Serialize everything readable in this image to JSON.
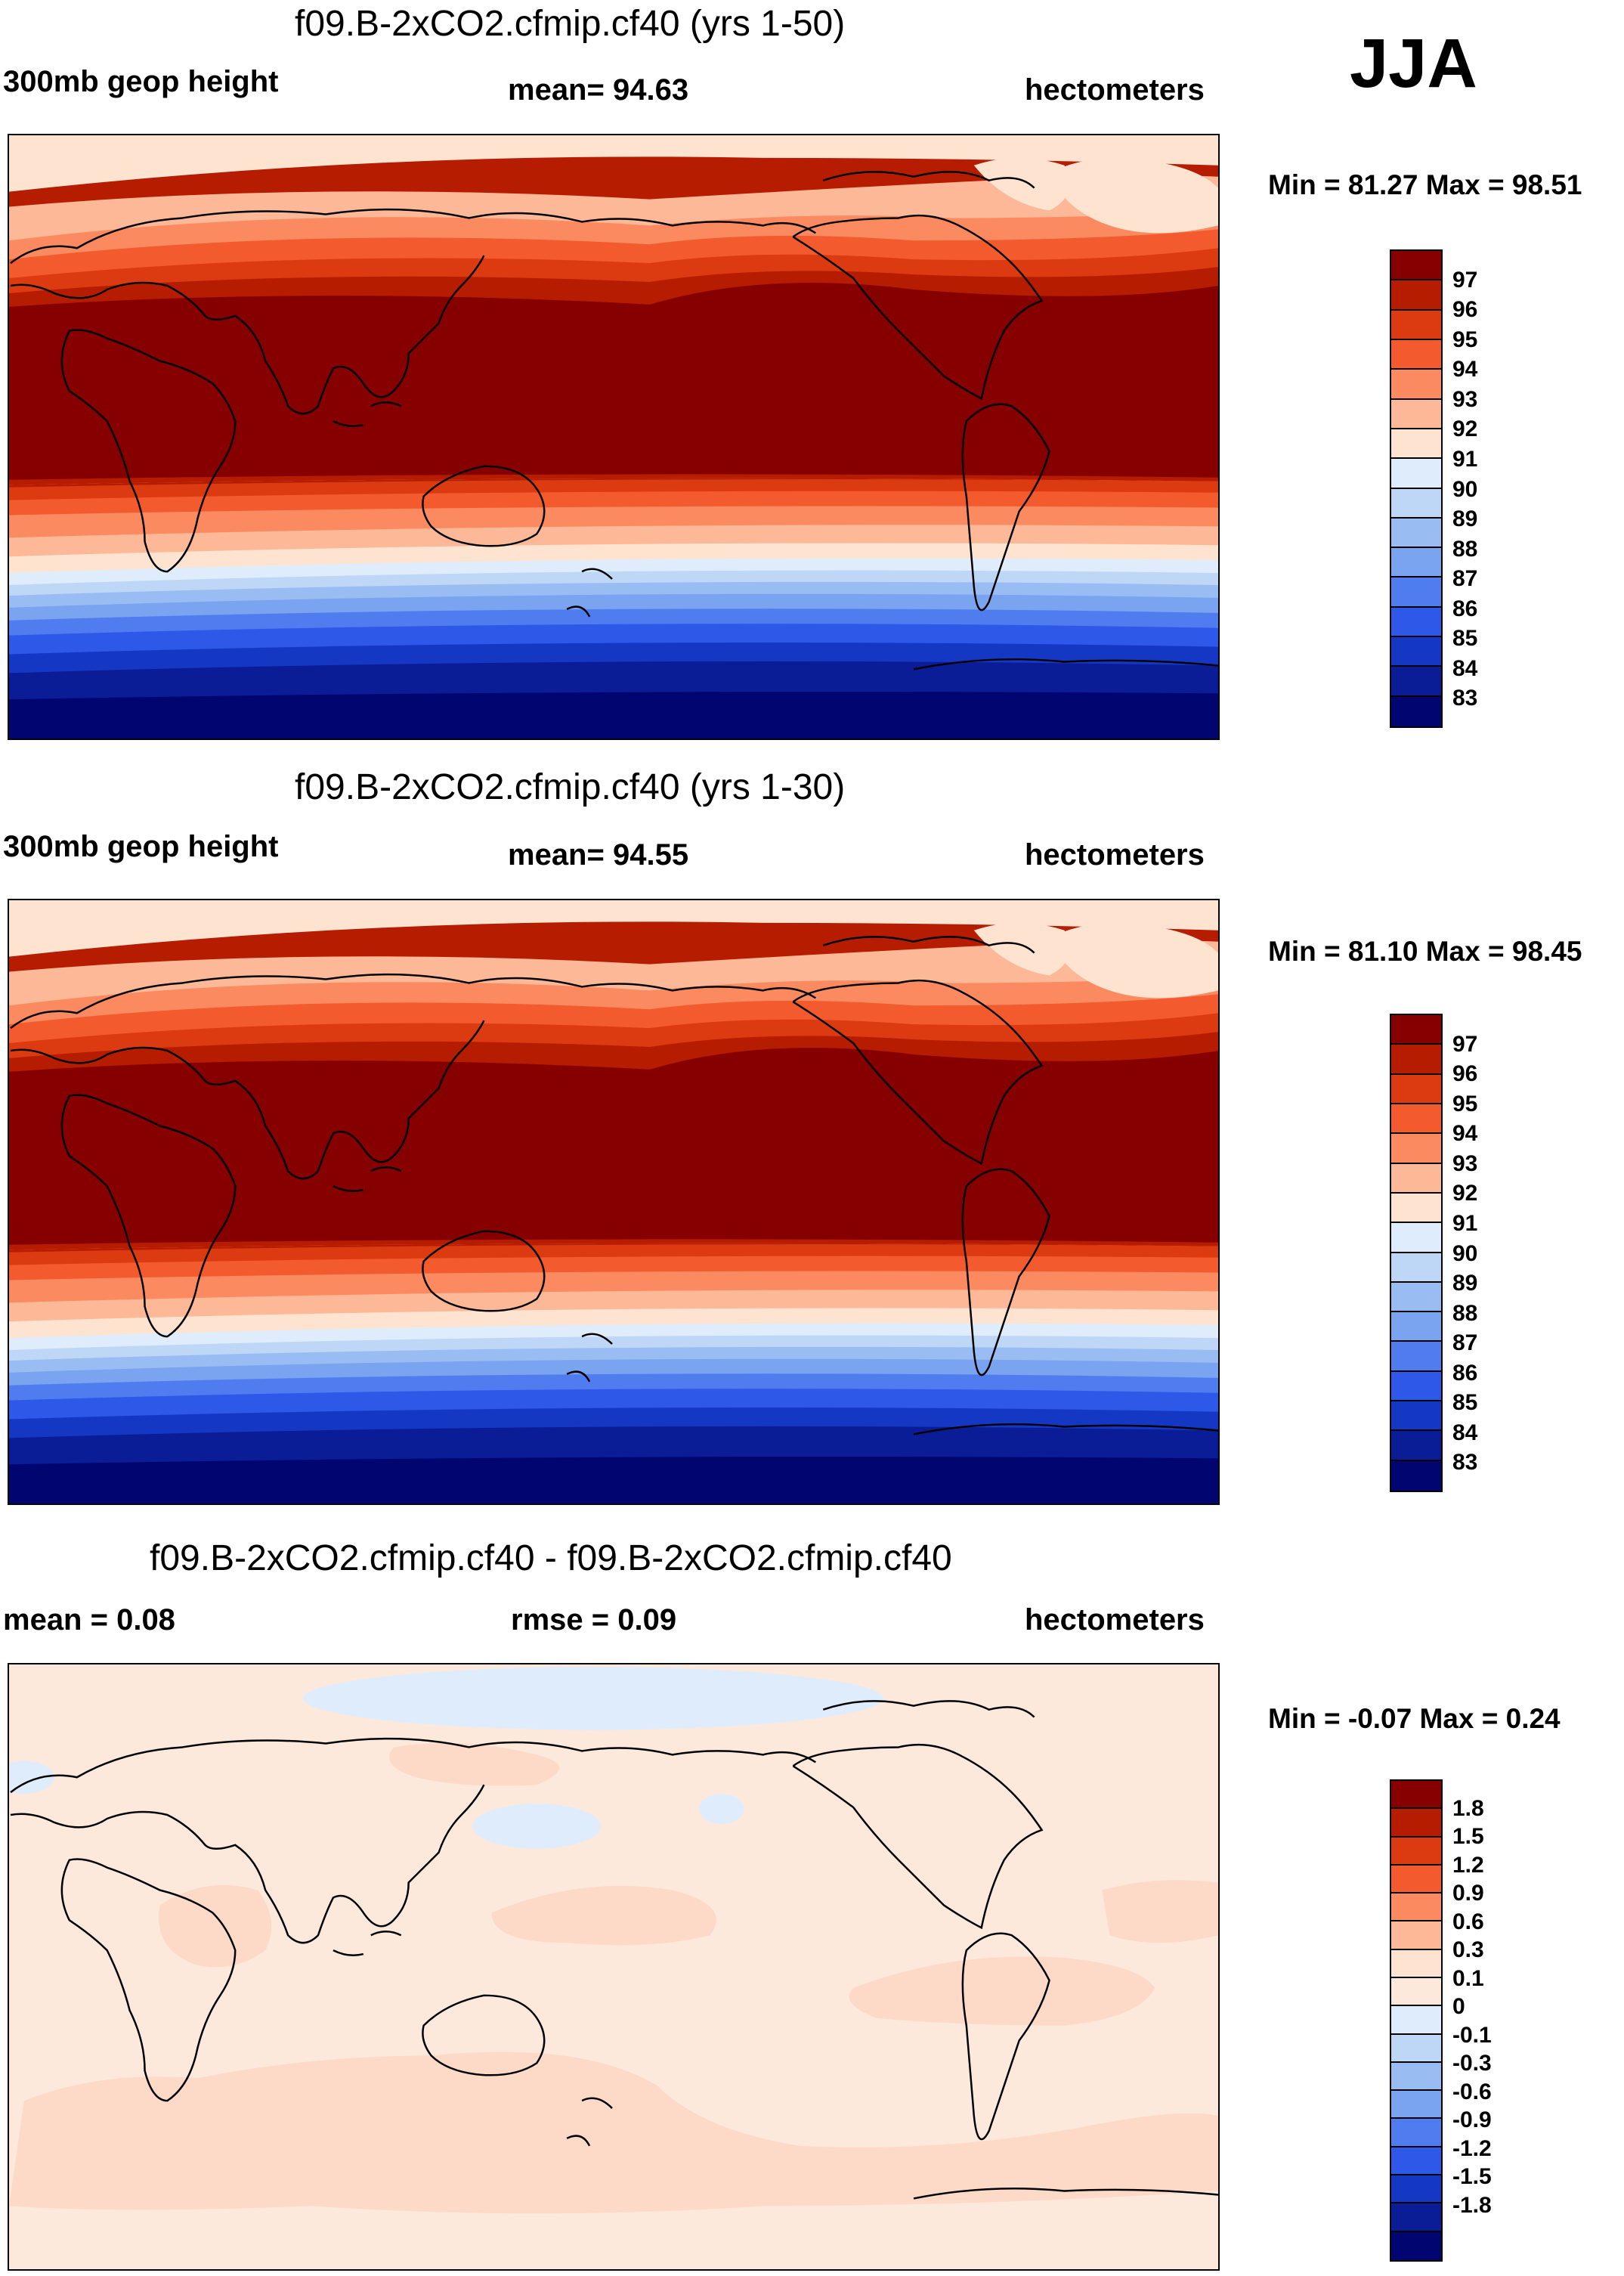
{
  "season": "JJA",
  "panels": [
    {
      "title": "f09.B-2xCO2.cfmip.cf40 (yrs 1-50)",
      "left_label": "300mb geop height",
      "center_label": "mean=  94.63",
      "units": "hectometers",
      "minmax": "Min =  81.27 Max =  98.51",
      "colorbar": {
        "colors": [
          "#870000",
          "#b51c00",
          "#dc3a10",
          "#f35a2d",
          "#fb8a60",
          "#fcb897",
          "#fde3d0",
          "#dfecfb",
          "#bfd7f7",
          "#99bdf2",
          "#7aa3f0",
          "#4f7df0",
          "#2d58e8",
          "#1538c4",
          "#0a1c96",
          "#01056f"
        ],
        "labels": [
          "97",
          "96",
          "95",
          "94",
          "93",
          "92",
          "91",
          "90",
          "89",
          "88",
          "87",
          "86",
          "85",
          "84",
          "83"
        ]
      }
    },
    {
      "title": "f09.B-2xCO2.cfmip.cf40 (yrs 1-30)",
      "left_label": "300mb geop height",
      "center_label": "mean=  94.55",
      "units": "hectometers",
      "minmax": "Min =  81.10 Max =  98.45",
      "colorbar": {
        "colors": [
          "#870000",
          "#b51c00",
          "#dc3a10",
          "#f35a2d",
          "#fb8a60",
          "#fcb897",
          "#fde3d0",
          "#dfecfb",
          "#bfd7f7",
          "#99bdf2",
          "#7aa3f0",
          "#4f7df0",
          "#2d58e8",
          "#1538c4",
          "#0a1c96",
          "#01056f"
        ],
        "labels": [
          "97",
          "96",
          "95",
          "94",
          "93",
          "92",
          "91",
          "90",
          "89",
          "88",
          "87",
          "86",
          "85",
          "84",
          "83"
        ]
      }
    },
    {
      "title": "f09.B-2xCO2.cfmip.cf40 - f09.B-2xCO2.cfmip.cf40",
      "left_label": "mean =   0.08",
      "center_label": "rmse =   0.09",
      "units": "hectometers",
      "minmax": "Min =  -0.07 Max =   0.24",
      "colorbar": {
        "colors": [
          "#870000",
          "#b51c00",
          "#dc3a10",
          "#f35a2d",
          "#fb8a60",
          "#fcb897",
          "#fde3d0",
          "#fde9dc",
          "#dfecfb",
          "#bfd7f7",
          "#99bdf2",
          "#7aa3f0",
          "#4f7df0",
          "#2d58e8",
          "#1538c4",
          "#0a1c96",
          "#01056f"
        ],
        "labels": [
          "1.8",
          "1.5",
          "1.2",
          "0.9",
          "0.6",
          "0.3",
          "0.1",
          "0",
          "-0.1",
          "-0.3",
          "-0.6",
          "-0.9",
          "-1.2",
          "-1.5",
          "-1.8"
        ]
      }
    }
  ]
}
